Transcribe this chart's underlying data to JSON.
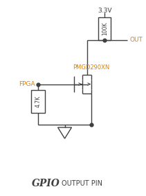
{
  "title_gpio": "GPIO",
  "title_rest": "OUTPUT PIN",
  "label_3v3": "3.3V",
  "label_out": "OUT",
  "label_fpga": "FPGA",
  "label_pmgd": "PMGD290XN",
  "label_100k": "100K",
  "label_4k7": "4.7K",
  "color_orange": "#E08000",
  "color_black": "#404040",
  "bg_color": "#ffffff",
  "lw": 1.0
}
